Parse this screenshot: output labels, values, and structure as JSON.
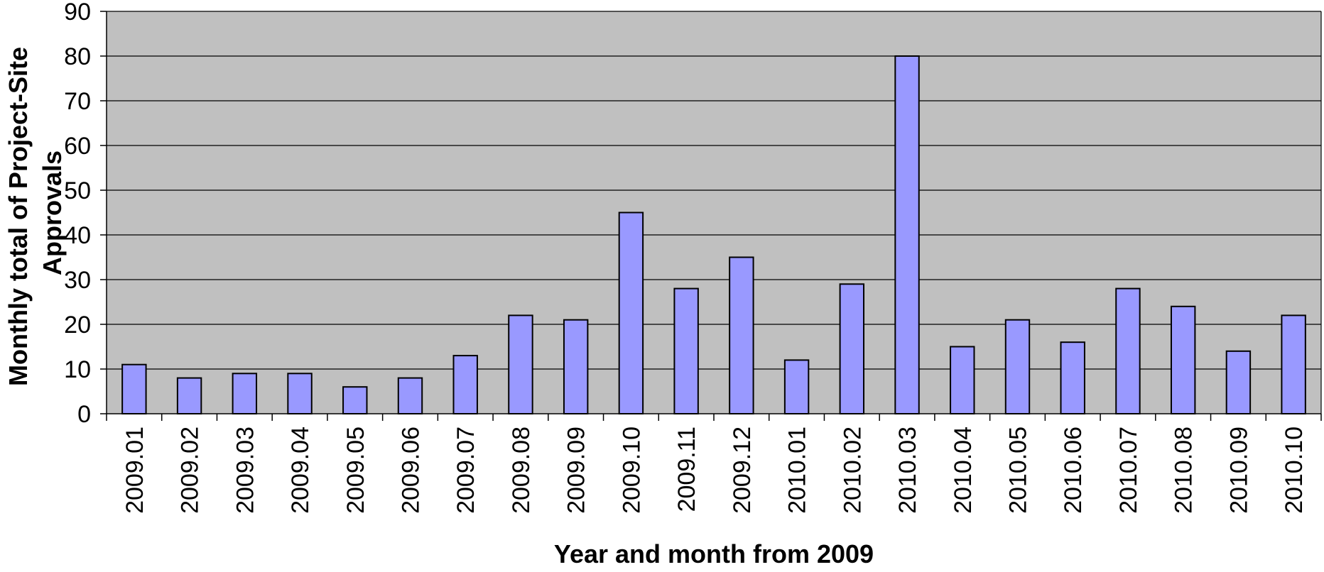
{
  "chart_data": {
    "type": "bar",
    "title": "",
    "xlabel": "Year and month from 2009",
    "ylabel_lines": [
      "Monthly total of Project-Site",
      "Approvals"
    ],
    "categories": [
      "2009.01",
      "2009.02",
      "2009.03",
      "2009.04",
      "2009.05",
      "2009.06",
      "2009.07",
      "2009.08",
      "2009.09",
      "2009.10",
      "2009.11",
      "2009.12",
      "2010.01",
      "2010.02",
      "2010.03",
      "2010.04",
      "2010.05",
      "2010.06",
      "2010.07",
      "2010.08",
      "2010.09",
      "2010.10"
    ],
    "values": [
      11,
      8,
      9,
      9,
      6,
      8,
      13,
      22,
      21,
      45,
      28,
      35,
      12,
      29,
      80,
      15,
      21,
      16,
      28,
      24,
      14,
      22
    ],
    "ylim": [
      0,
      90
    ],
    "yticks": [
      0,
      10,
      20,
      30,
      40,
      50,
      60,
      70,
      80,
      90
    ],
    "grid": true,
    "legend": "none",
    "colors": {
      "bar_fill": "#9999ff",
      "bar_stroke": "#000000",
      "plot_background": "#c0c0c0",
      "gridline": "#000000"
    }
  }
}
